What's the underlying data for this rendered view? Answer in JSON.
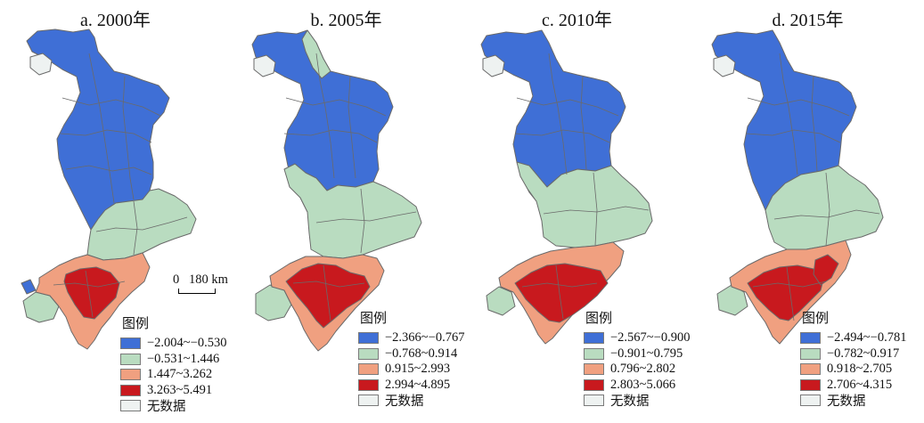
{
  "colors": {
    "class1": "#3f6fd6",
    "class2": "#b9dcc0",
    "class3": "#f0a080",
    "class4": "#c8191e",
    "no_data": "#eef2f1",
    "boundary": "#6a6a6a"
  },
  "scale_bar": {
    "zero": "0",
    "distance": "180 km"
  },
  "panels": [
    {
      "title": "a. 2000年",
      "legend_title": "图例",
      "legend": [
        "−2.004~−0.530",
        "−0.531~1.446",
        "1.447~3.262",
        "3.263~5.491",
        "无数据"
      ]
    },
    {
      "title": "b. 2005年",
      "legend_title": "图例",
      "legend": [
        "−2.366~−0.767",
        "−0.768~0.914",
        "0.915~2.993",
        "2.994~4.895",
        "无数据"
      ]
    },
    {
      "title": "c. 2010年",
      "legend_title": "图例",
      "legend": [
        "−2.567~−0.900",
        "−0.901~0.795",
        "0.796~2.802",
        "2.803~5.066",
        "无数据"
      ]
    },
    {
      "title": "d. 2015年",
      "legend_title": "图例",
      "legend": [
        "−2.494~−0.781",
        "−0.782~0.917",
        "0.918~2.705",
        "2.706~4.315",
        "无数据"
      ]
    }
  ]
}
